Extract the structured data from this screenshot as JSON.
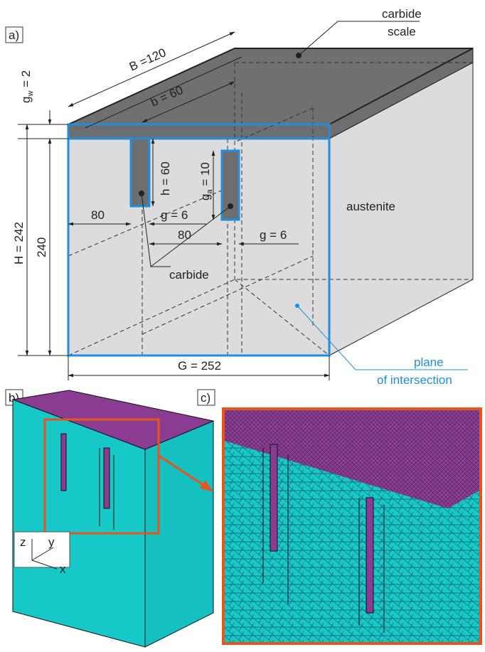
{
  "panel_a": {
    "label": "a)",
    "carbide_scale": {
      "line1": "carbide",
      "line2": "scale"
    },
    "dim_B": "B =120",
    "dim_b": "b = 60",
    "dim_gw": {
      "base": "g",
      "sub": "w",
      "rest": " = 2"
    },
    "dim_H": "H = 242",
    "dim_240": "240",
    "dim_h": "h = 60",
    "dim_ga": {
      "base": "g",
      "sub": "a",
      "rest": " = 10"
    },
    "dim_80_left": "80",
    "dim_g6_upper": "g = 6",
    "dim_80_lower": "80",
    "dim_g6_lower": "g = 6",
    "austenite": "austenite",
    "carbide": "carbide",
    "plane": {
      "line1": "plane",
      "line2": "of intersection"
    },
    "dim_G": "G = 252"
  },
  "panel_b": {
    "label": "b)",
    "axes": {
      "z": "z",
      "y": "y",
      "x": "x"
    }
  },
  "panel_c": {
    "label": "c)"
  }
}
